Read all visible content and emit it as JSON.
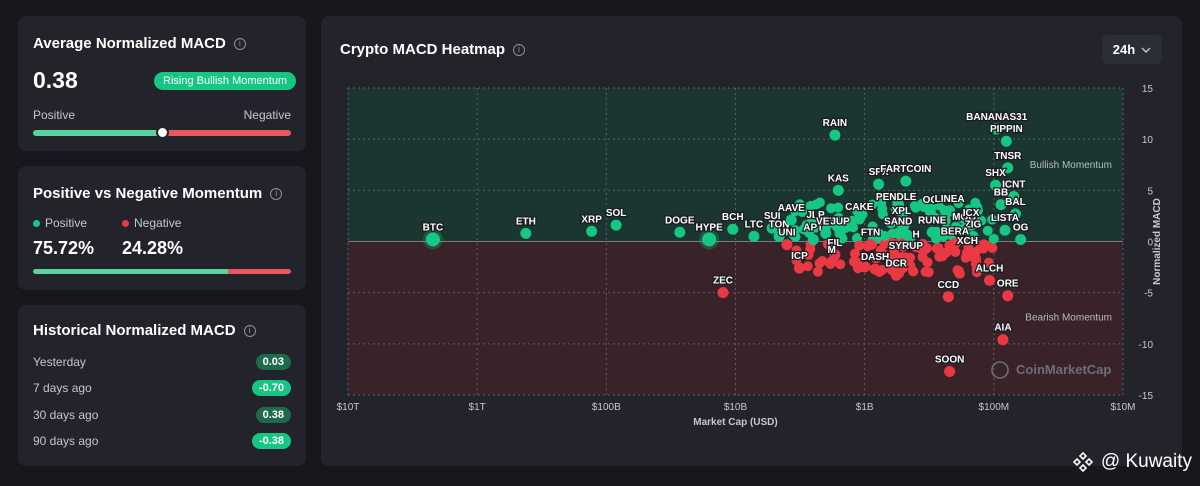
{
  "avg_card": {
    "title": "Average Normalized MACD",
    "value": "0.38",
    "badge": "Rising Bullish Momentum",
    "left_label": "Positive",
    "right_label": "Negative",
    "slider_position": 0.5
  },
  "pn_card": {
    "title": "Positive vs Negative Momentum",
    "positive_label": "Positive",
    "negative_label": "Negative",
    "positive_value": "75.72%",
    "negative_value": "24.28%",
    "positive_fraction": 0.7572
  },
  "hist_card": {
    "title": "Historical Normalized MACD",
    "rows": [
      {
        "label": "Yesterday",
        "value": "0.03",
        "color": "#1e6b4b"
      },
      {
        "label": "7 days ago",
        "value": "-0.70",
        "color": "#16c784"
      },
      {
        "label": "30 days ago",
        "value": "0.38",
        "color": "#1e6b4b"
      },
      {
        "label": "90 days ago",
        "value": "-0.38",
        "color": "#16c784"
      }
    ]
  },
  "heatmap": {
    "title": "Crypto MACD Heatmap",
    "timeframe": "24h",
    "watermark": "CoinMarketCap"
  },
  "colors": {
    "green": "#16c784",
    "red": "#ea3943",
    "bull_zone": "#1b3530",
    "bear_zone": "#3a2229"
  },
  "chart_data": {
    "type": "scatter",
    "title": "Crypto MACD Heatmap",
    "xlabel": "Market Cap (USD)",
    "ylabel": "Normalized MACD",
    "x_scale": "log",
    "xlim": [
      10000000000000,
      10000000
    ],
    "ylim": [
      -15,
      15
    ],
    "x_ticks": [
      {
        "v": 10000000000000,
        "label": "$10T"
      },
      {
        "v": 1000000000000,
        "label": "$1T"
      },
      {
        "v": 100000000000,
        "label": "$100B"
      },
      {
        "v": 10000000000,
        "label": "$10B"
      },
      {
        "v": 1000000000,
        "label": "$1B"
      },
      {
        "v": 100000000,
        "label": "$100M"
      },
      {
        "v": 10000000,
        "label": "$10M"
      }
    ],
    "y_ticks": [
      15,
      10,
      5,
      0,
      -5,
      -10,
      -15
    ],
    "zone_labels": {
      "bull": "Bullish Momentum",
      "bear": "Bearish Momentum"
    },
    "points": [
      {
        "name": "BTC",
        "mcap": 2200000000000,
        "macd": 0.2
      },
      {
        "name": "ETH",
        "mcap": 420000000000,
        "macd": 0.8
      },
      {
        "name": "XRP",
        "mcap": 130000000000,
        "macd": 1.0
      },
      {
        "name": "SOL",
        "mcap": 84000000000,
        "macd": 1.6
      },
      {
        "name": "DOGE",
        "mcap": 27000000000,
        "macd": 0.9
      },
      {
        "name": "BCH",
        "mcap": 10500000000,
        "macd": 1.2
      },
      {
        "name": "HYPE",
        "mcap": 16000000000,
        "macd": 0.2
      },
      {
        "name": "LTC",
        "mcap": 7200000000,
        "macd": 0.5
      },
      {
        "name": "SUI",
        "mcap": 5200000000,
        "macd": 1.3
      },
      {
        "name": "TON",
        "mcap": 4600000000,
        "macd": 0.5
      },
      {
        "name": "UNI",
        "mcap": 4000000000,
        "macd": -0.3
      },
      {
        "name": "AAVE",
        "mcap": 3700000000,
        "macd": 2.1
      },
      {
        "name": "JLP",
        "mcap": 2400000000,
        "macd": 1.4
      },
      {
        "name": "APT",
        "mcap": 2500000000,
        "macd": 0.2
      },
      {
        "name": "VET",
        "mcap": 2000000000,
        "macd": 0.8
      },
      {
        "name": "JUP",
        "mcap": 1550000000,
        "macd": 0.8
      },
      {
        "name": "CAKE",
        "mcap": 1100000000,
        "macd": 2.2
      },
      {
        "name": "KAS",
        "mcap": 1600000000,
        "macd": 5.0
      },
      {
        "name": "RAIN",
        "mcap": 1700000000,
        "macd": 10.4
      },
      {
        "name": "SPX",
        "mcap": 780000000,
        "macd": 5.6
      },
      {
        "name": "FARTCOIN",
        "mcap": 480000000,
        "macd": 5.9
      },
      {
        "name": "PENDLE",
        "mcap": 570000000,
        "macd": 3.2
      },
      {
        "name": "XPL",
        "mcap": 520000000,
        "macd": 1.8
      },
      {
        "name": "OG",
        "mcap": 310000000,
        "macd": 2.9
      },
      {
        "name": "LINEA",
        "mcap": 220000000,
        "macd": 3.0
      },
      {
        "name": "SAND",
        "mcap": 550000000,
        "macd": 0.8
      },
      {
        "name": "RUNE",
        "mcap": 300000000,
        "macd": 0.9
      },
      {
        "name": "MOG",
        "mcap": 170000000,
        "macd": 1.2
      },
      {
        "name": "ICX",
        "mcap": 150000000,
        "macd": 1.6
      },
      {
        "name": "ZIG",
        "mcap": 145000000,
        "macd": 0.5
      },
      {
        "name": "BERA",
        "mcap": 200000000,
        "macd": -0.2
      },
      {
        "name": "XCH",
        "mcap": 160000000,
        "macd": -1.1
      },
      {
        "name": "FIL",
        "mcap": 1700000000,
        "macd": -1.3
      },
      {
        "name": "FTN",
        "mcap": 900000000,
        "macd": -0.3
      },
      {
        "name": "H",
        "mcap": 400000000,
        "macd": -0.5
      },
      {
        "name": "SYRUP",
        "mcap": 480000000,
        "macd": -1.6
      },
      {
        "name": "M",
        "mcap": 1800000000,
        "macd": -2.0
      },
      {
        "name": "ICP",
        "mcap": 3200000000,
        "macd": -2.6
      },
      {
        "name": "DASH",
        "mcap": 830000000,
        "macd": -2.7
      },
      {
        "name": "DCR",
        "mcap": 570000000,
        "macd": -3.3
      },
      {
        "name": "ZEC",
        "mcap": 12500000000,
        "macd": -5.0
      },
      {
        "name": "CCD",
        "mcap": 225000000,
        "macd": -5.4
      },
      {
        "name": "ALCH",
        "mcap": 108000000,
        "macd": -3.8
      },
      {
        "name": "ORE",
        "mcap": 78000000,
        "macd": -5.3
      },
      {
        "name": "AIA",
        "mcap": 85000000,
        "macd": -9.6
      },
      {
        "name": "SOON",
        "mcap": 220000000,
        "macd": -12.7
      },
      {
        "name": "BANANAS31",
        "mcap": 95000000,
        "macd": 11.0
      },
      {
        "name": "PIPPIN",
        "mcap": 80000000,
        "macd": 9.8
      },
      {
        "name": "TNSR",
        "mcap": 78000000,
        "macd": 7.2
      },
      {
        "name": "SHX",
        "mcap": 97000000,
        "macd": 5.5
      },
      {
        "name": "ICNT",
        "mcap": 70000000,
        "macd": 4.4
      },
      {
        "name": "BB",
        "mcap": 88000000,
        "macd": 3.6
      },
      {
        "name": "BAL",
        "mcap": 68000000,
        "macd": 2.7
      },
      {
        "name": "LISTA",
        "mcap": 82000000,
        "macd": 1.1
      },
      {
        "name": "OG",
        "mcap": 62000000,
        "macd": 0.2
      }
    ]
  }
}
